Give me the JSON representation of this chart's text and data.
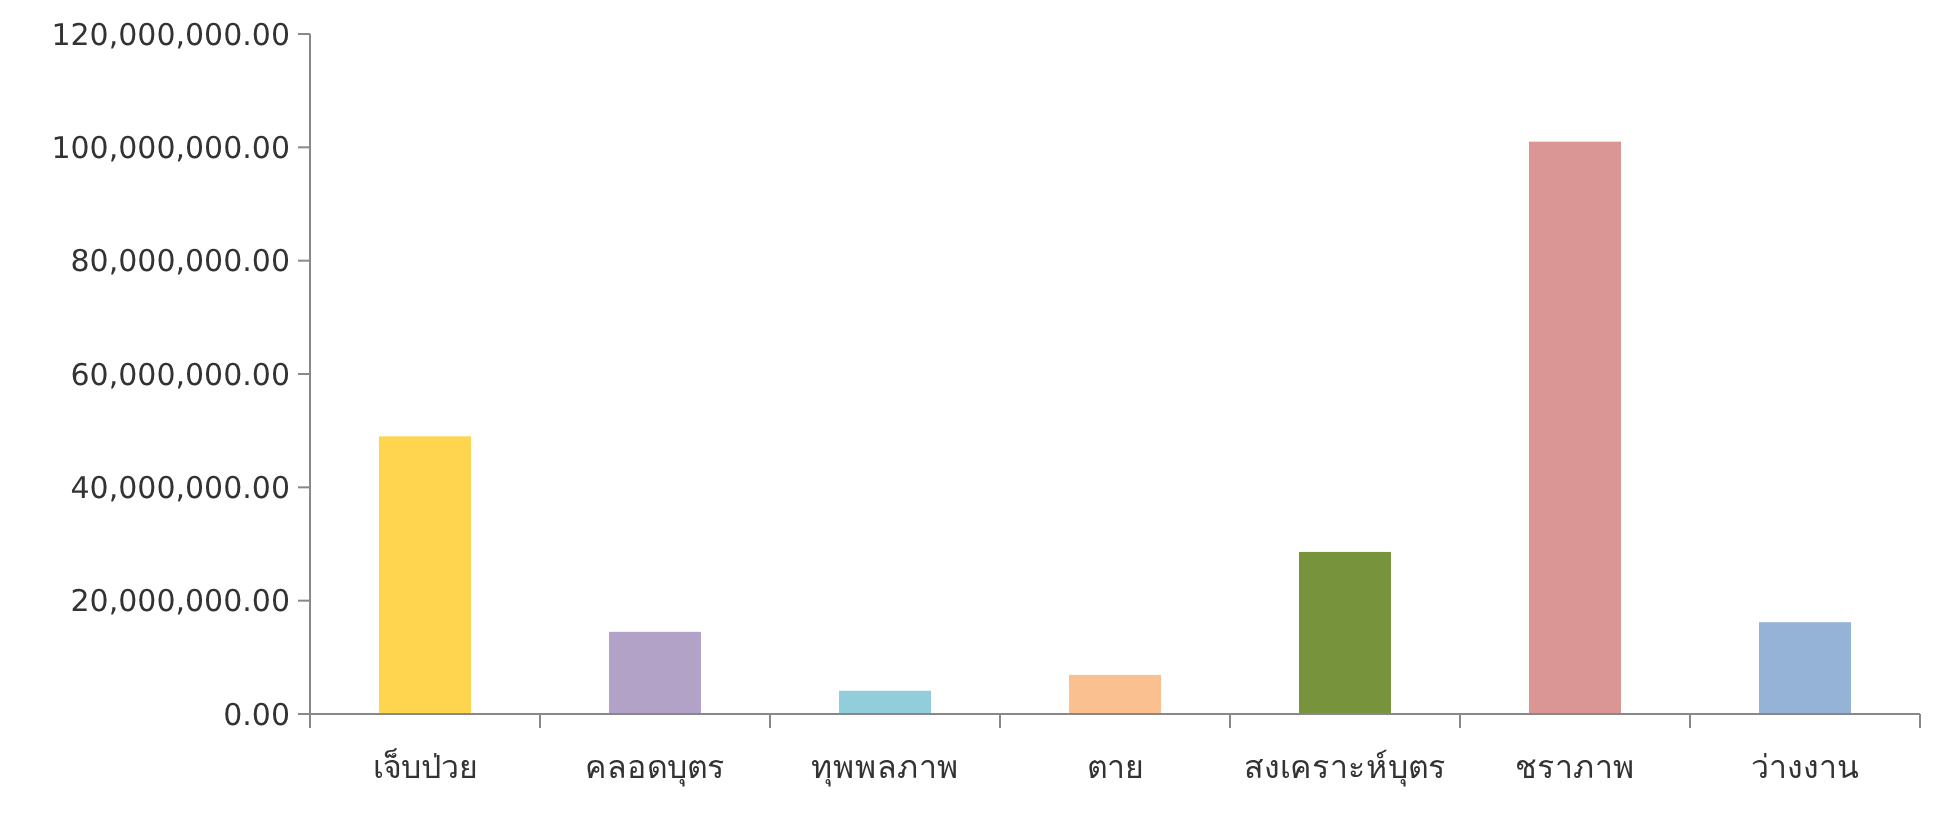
{
  "chart_data": {
    "type": "bar",
    "categories": [
      "เจ็บป่วย",
      "คลอดบุตร",
      "ทุพพลภาพ",
      "ตาย",
      "สงเคราะห์บุตร",
      "ชราภาพ",
      "ว่างงาน"
    ],
    "values": [
      49000000,
      14500000,
      4100000,
      6900000,
      28600000,
      101000000,
      16200000
    ],
    "colors": [
      "#ffd54f",
      "#b3a2c7",
      "#92cddc",
      "#fac090",
      "#77933c",
      "#d99694",
      "#95b3d7"
    ],
    "ylim": [
      0,
      120000000
    ],
    "yticks": [
      {
        "value": 0,
        "label": "0.00"
      },
      {
        "value": 20000000,
        "label": "20,000,000.00"
      },
      {
        "value": 40000000,
        "label": "40,000,000.00"
      },
      {
        "value": 60000000,
        "label": "60,000,000.00"
      },
      {
        "value": 80000000,
        "label": "80,000,000.00"
      },
      {
        "value": 100000000,
        "label": "100,000,000.00"
      },
      {
        "value": 120000000,
        "label": "120,000,000.00"
      }
    ],
    "grid": false
  }
}
